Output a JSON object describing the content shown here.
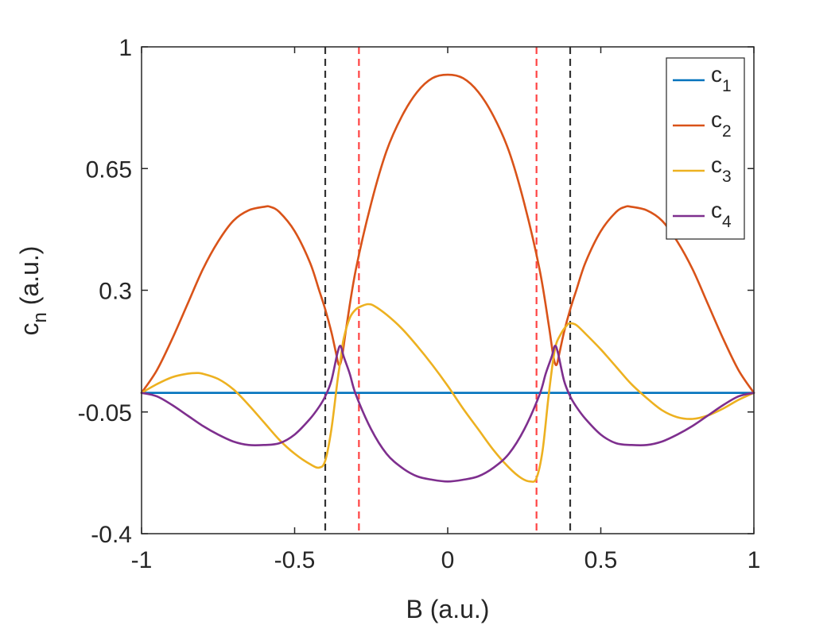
{
  "chart_data": {
    "type": "line",
    "title": "",
    "xlabel": "B (a.u.)",
    "ylabel": {
      "base": "c",
      "sub": "n",
      "suffix": " (a.u.)"
    },
    "xlim": [
      -1,
      1
    ],
    "ylim": [
      -0.4,
      1
    ],
    "xticks": [
      -1,
      -0.5,
      0,
      0.5,
      1
    ],
    "xtick_labels": [
      "-1",
      "-0.5",
      "0",
      "0.5",
      "1"
    ],
    "yticks": [
      -0.4,
      -0.05,
      0.3,
      0.65,
      1
    ],
    "ytick_labels": [
      "-0.4",
      "-0.05",
      "0.3",
      "0.65",
      "1"
    ],
    "grid": false,
    "legend_position": "top-right",
    "series": [
      {
        "name": "c1",
        "label_base": "c",
        "label_sub": "1",
        "color": "#0072BD",
        "x": [
          -1,
          -0.5,
          0,
          0.5,
          1
        ],
        "y": [
          0.005,
          0.005,
          0.005,
          0.005,
          0.005
        ]
      },
      {
        "name": "c2",
        "label_base": "c",
        "label_sub": "2",
        "color": "#D95319",
        "x": [
          -1,
          -0.95,
          -0.9,
          -0.85,
          -0.8,
          -0.75,
          -0.7,
          -0.65,
          -0.6,
          -0.58,
          -0.55,
          -0.5,
          -0.45,
          -0.42,
          -0.4,
          -0.38,
          -0.365,
          -0.355,
          -0.345,
          -0.33,
          -0.3,
          -0.25,
          -0.2,
          -0.15,
          -0.1,
          -0.05,
          0,
          0.05,
          0.1,
          0.15,
          0.2,
          0.25,
          0.3,
          0.33,
          0.345,
          0.355,
          0.365,
          0.38,
          0.4,
          0.42,
          0.45,
          0.5,
          0.55,
          0.58,
          0.6,
          0.65,
          0.7,
          0.75,
          0.8,
          0.85,
          0.9,
          0.95,
          1
        ],
        "y": [
          0.005,
          0.07,
          0.16,
          0.26,
          0.36,
          0.44,
          0.5,
          0.53,
          0.54,
          0.54,
          0.525,
          0.47,
          0.38,
          0.3,
          0.245,
          0.18,
          0.12,
          0.085,
          0.11,
          0.2,
          0.36,
          0.55,
          0.7,
          0.8,
          0.87,
          0.91,
          0.92,
          0.91,
          0.87,
          0.8,
          0.7,
          0.55,
          0.36,
          0.2,
          0.11,
          0.085,
          0.12,
          0.18,
          0.245,
          0.3,
          0.38,
          0.47,
          0.525,
          0.54,
          0.54,
          0.53,
          0.5,
          0.44,
          0.36,
          0.26,
          0.16,
          0.07,
          0.005
        ]
      },
      {
        "name": "c3",
        "label_base": "c",
        "label_sub": "3",
        "color": "#EDB120",
        "x": [
          -1,
          -0.95,
          -0.9,
          -0.85,
          -0.82,
          -0.8,
          -0.75,
          -0.7,
          -0.65,
          -0.6,
          -0.55,
          -0.5,
          -0.45,
          -0.42,
          -0.4,
          -0.38,
          -0.36,
          -0.35,
          -0.34,
          -0.32,
          -0.3,
          -0.28,
          -0.26,
          -0.24,
          -0.2,
          -0.15,
          -0.1,
          -0.05,
          0,
          0.05,
          0.1,
          0.15,
          0.2,
          0.24,
          0.27,
          0.29,
          0.31,
          0.33,
          0.35,
          0.37,
          0.39,
          0.4,
          0.42,
          0.45,
          0.5,
          0.55,
          0.6,
          0.65,
          0.7,
          0.75,
          0.8,
          0.85,
          0.9,
          0.95,
          1
        ],
        "y": [
          0.005,
          0.03,
          0.05,
          0.06,
          0.062,
          0.06,
          0.045,
          0.015,
          -0.03,
          -0.08,
          -0.13,
          -0.17,
          -0.2,
          -0.21,
          -0.19,
          -0.1,
          0.04,
          0.1,
          0.16,
          0.22,
          0.245,
          0.255,
          0.26,
          0.255,
          0.23,
          0.19,
          0.14,
          0.085,
          0.025,
          -0.04,
          -0.1,
          -0.16,
          -0.21,
          -0.24,
          -0.25,
          -0.24,
          -0.16,
          0.0,
          0.13,
          0.175,
          0.2,
          0.205,
          0.2,
          0.175,
          0.13,
          0.08,
          0.03,
          -0.01,
          -0.045,
          -0.065,
          -0.07,
          -0.06,
          -0.04,
          -0.015,
          0.005
        ]
      },
      {
        "name": "c4",
        "label_base": "c",
        "label_sub": "4",
        "color": "#7E2F8E",
        "x": [
          -1,
          -0.95,
          -0.9,
          -0.85,
          -0.8,
          -0.75,
          -0.7,
          -0.65,
          -0.6,
          -0.55,
          -0.5,
          -0.45,
          -0.42,
          -0.4,
          -0.38,
          -0.36,
          -0.35,
          -0.34,
          -0.32,
          -0.3,
          -0.25,
          -0.2,
          -0.15,
          -0.1,
          -0.05,
          0,
          0.05,
          0.1,
          0.15,
          0.2,
          0.25,
          0.3,
          0.32,
          0.34,
          0.35,
          0.36,
          0.38,
          0.4,
          0.42,
          0.45,
          0.5,
          0.55,
          0.6,
          0.65,
          0.7,
          0.75,
          0.8,
          0.85,
          0.9,
          0.95,
          1
        ],
        "y": [
          0.005,
          -0.005,
          -0.03,
          -0.06,
          -0.09,
          -0.115,
          -0.135,
          -0.145,
          -0.145,
          -0.14,
          -0.115,
          -0.07,
          -0.035,
          -0.005,
          0.04,
          0.12,
          0.14,
          0.11,
          0.06,
          0.0,
          -0.1,
          -0.17,
          -0.21,
          -0.235,
          -0.245,
          -0.25,
          -0.245,
          -0.235,
          -0.21,
          -0.17,
          -0.1,
          0.0,
          0.06,
          0.11,
          0.14,
          0.12,
          0.04,
          -0.005,
          -0.035,
          -0.07,
          -0.115,
          -0.14,
          -0.145,
          -0.145,
          -0.135,
          -0.115,
          -0.09,
          -0.06,
          -0.03,
          -0.005,
          0.005
        ]
      }
    ],
    "reference_lines": [
      {
        "x": -0.4,
        "color": "#333333",
        "style": "dashed"
      },
      {
        "x": 0.4,
        "color": "#333333",
        "style": "dashed"
      },
      {
        "x": -0.29,
        "color": "#FF4444",
        "style": "dashed"
      },
      {
        "x": 0.29,
        "color": "#FF4444",
        "style": "dashed"
      }
    ]
  }
}
